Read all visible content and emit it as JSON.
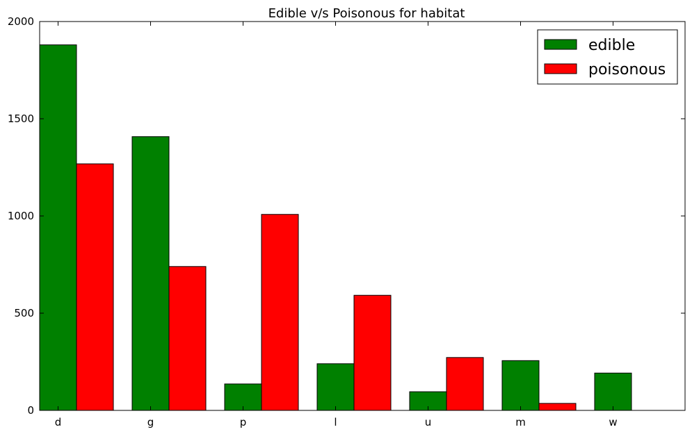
{
  "chart_data": {
    "type": "bar",
    "title": "Edible v/s Poisonous for habitat",
    "xlabel": "",
    "ylabel": "",
    "categories": [
      "d",
      "g",
      "p",
      "l",
      "u",
      "m",
      "w"
    ],
    "series": [
      {
        "name": "edible",
        "color": "#008000",
        "values": [
          1880,
          1408,
          136,
          240,
          96,
          256,
          192
        ]
      },
      {
        "name": "poisonous",
        "color": "#ff0000",
        "values": [
          1268,
          740,
          1008,
          592,
          272,
          36,
          0
        ]
      }
    ],
    "ylim": [
      0,
      2000
    ],
    "yticks": [
      0,
      500,
      1000,
      1500,
      2000
    ],
    "grid": false,
    "legend": "top-right"
  }
}
